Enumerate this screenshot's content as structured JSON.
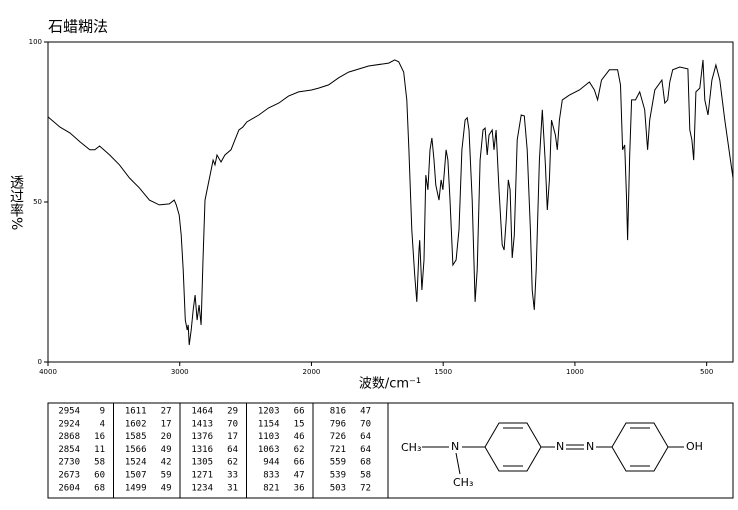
{
  "chart_data": {
    "type": "line",
    "title": "石蜡糊法",
    "xlabel": "波数/cm⁻¹",
    "ylabel": "透过率%",
    "color": "#000000",
    "xlim": [
      4000,
      400
    ],
    "xscale_break": 2000,
    "xticks": [
      4000,
      3000,
      2000,
      1500,
      1000,
      500
    ],
    "ylim": [
      0,
      100
    ],
    "yticks": [
      0,
      50,
      100
    ],
    "x": [
      4000,
      3909,
      3834,
      3758,
      3683,
      3645,
      3608,
      3532,
      3457,
      3381,
      3306,
      3230,
      3155,
      3079,
      3042,
      3026,
      3004,
      2989,
      2974,
      2958,
      2943,
      2936,
      2928,
      2913,
      2898,
      2883,
      2868,
      2853,
      2838,
      2823,
      2808,
      2777,
      2747,
      2732,
      2717,
      2687,
      2657,
      2611,
      2581,
      2551,
      2521,
      2491,
      2400,
      2325,
      2249,
      2174,
      2098,
      2000,
      1973,
      1935,
      1897,
      1859,
      1783,
      1707,
      1684,
      1669,
      1650,
      1638,
      1630,
      1619,
      1608,
      1600,
      1592,
      1589,
      1581,
      1573,
      1566,
      1558,
      1550,
      1543,
      1535,
      1528,
      1516,
      1508,
      1501,
      1489,
      1482,
      1474,
      1463,
      1451,
      1440,
      1429,
      1417,
      1409,
      1402,
      1390,
      1379,
      1371,
      1360,
      1349,
      1341,
      1333,
      1326,
      1314,
      1307,
      1299,
      1288,
      1276,
      1269,
      1261,
      1253,
      1246,
      1238,
      1230,
      1219,
      1204,
      1192,
      1181,
      1169,
      1162,
      1154,
      1147,
      1135,
      1124,
      1112,
      1105,
      1097,
      1089,
      1074,
      1067,
      1059,
      1048,
      1021,
      983,
      945,
      926,
      914,
      899,
      869,
      838,
      827,
      819,
      811,
      804,
      800,
      792,
      785,
      770,
      754,
      735,
      724,
      716,
      697,
      670,
      659,
      648,
      640,
      629,
      602,
      571,
      564,
      556,
      549,
      541,
      526,
      514,
      507,
      495,
      480,
      465,
      450,
      431,
      400
    ],
    "values": [
      76.6,
      73.4,
      71.6,
      68.8,
      66.3,
      66.3,
      67.5,
      64.7,
      61.6,
      57.5,
      54.4,
      50.6,
      49.1,
      49.4,
      50.6,
      49.1,
      45.9,
      39.7,
      28.8,
      13.1,
      10,
      11.6,
      5.3,
      10,
      16.3,
      20.9,
      13.1,
      17.8,
      11.6,
      31.9,
      50.6,
      56.9,
      63.1,
      61.6,
      64.7,
      62.5,
      64.7,
      66.3,
      69.4,
      72.5,
      73.4,
      75,
      77.2,
      79.4,
      80.9,
      83.1,
      84.4,
      85,
      85.6,
      86.6,
      88.8,
      90.6,
      92.5,
      93.4,
      94.4,
      93.8,
      90.6,
      81.9,
      66.3,
      41.3,
      27.2,
      18.8,
      35,
      38.1,
      22.5,
      31.9,
      58.4,
      53.8,
      66.3,
      70,
      63.1,
      55.3,
      50.6,
      56.9,
      53.8,
      66.3,
      63.1,
      50.6,
      30.3,
      31.9,
      41.3,
      66.3,
      75.6,
      76.3,
      72.5,
      50.6,
      18.8,
      28.8,
      63.1,
      72.5,
      73.1,
      64.7,
      70.9,
      72.5,
      66.3,
      72.5,
      53.8,
      36.6,
      35,
      44.4,
      56.9,
      53.8,
      32.5,
      39.7,
      69.4,
      77.2,
      76.9,
      66.3,
      41.3,
      22.5,
      16.3,
      28.8,
      63.1,
      78.8,
      61.6,
      47.5,
      56.9,
      75.6,
      70.9,
      66.3,
      75.6,
      81.9,
      83.4,
      85,
      87.5,
      85,
      81.9,
      88.1,
      91.3,
      91.3,
      86.6,
      66.3,
      67.8,
      50.6,
      38.1,
      64.7,
      81.9,
      81.9,
      84.4,
      78.8,
      66.3,
      75.6,
      85,
      88.1,
      80.9,
      81.9,
      87.5,
      91.3,
      92.2,
      91.6,
      72.5,
      69.4,
      63.1,
      84.4,
      85.6,
      94.4,
      81.9,
      77.2,
      88.1,
      92.8,
      88.1,
      75.6,
      57.5
    ]
  },
  "peak_table": {
    "columns": [
      [
        [
          "2954",
          "9"
        ],
        [
          "2924",
          "4"
        ],
        [
          "2868",
          "16"
        ],
        [
          "2854",
          "11"
        ],
        [
          "2730",
          "58"
        ],
        [
          "2673",
          "60"
        ],
        [
          "2604",
          "68"
        ]
      ],
      [
        [
          "1611",
          "27"
        ],
        [
          "1602",
          "17"
        ],
        [
          "1585",
          "20"
        ],
        [
          "1566",
          "49"
        ],
        [
          "1524",
          "42"
        ],
        [
          "1507",
          "59"
        ],
        [
          "1499",
          "49"
        ]
      ],
      [
        [
          "1464",
          "29"
        ],
        [
          "1413",
          "70"
        ],
        [
          "1376",
          "17"
        ],
        [
          "1316",
          "64"
        ],
        [
          "1305",
          "62"
        ],
        [
          "1271",
          "33"
        ],
        [
          "1234",
          "31"
        ]
      ],
      [
        [
          "1203",
          "66"
        ],
        [
          "1154",
          "15"
        ],
        [
          "1103",
          "46"
        ],
        [
          "1063",
          "62"
        ],
        [
          "944",
          "66"
        ],
        [
          "833",
          "47"
        ],
        [
          "821",
          "36"
        ]
      ],
      [
        [
          "816",
          "47"
        ],
        [
          "796",
          "70"
        ],
        [
          "726",
          "64"
        ],
        [
          "721",
          "64"
        ],
        [
          "559",
          "68"
        ],
        [
          "539",
          "58"
        ],
        [
          "503",
          "72"
        ]
      ]
    ]
  },
  "structure": {
    "methyl_top": "CH₃",
    "amine": "N",
    "methyl_bottom": "CH₃",
    "azo_left": "N",
    "azo_right": "N",
    "hydroxyl": "OH"
  }
}
